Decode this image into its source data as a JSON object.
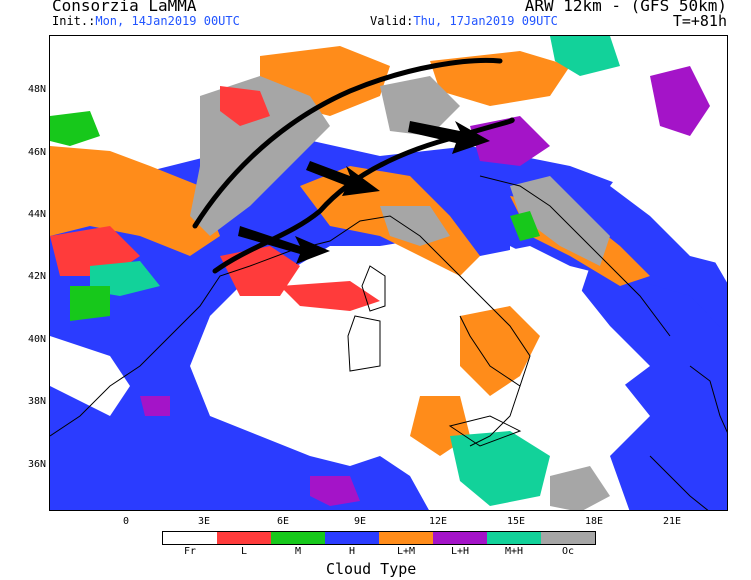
{
  "header": {
    "org": "Consorzia LaMMA",
    "model": "ARW 12km - (GFS 50km)",
    "init_label": "Init.:",
    "init_value": "Mon, 14Jan2019 00UTC",
    "valid_label": "Valid:",
    "valid_value": "Thu, 17Jan2019 09UTC",
    "timestep": "T=+81h"
  },
  "axes": {
    "lat_labels": [
      "48N",
      "46N",
      "44N",
      "42N",
      "40N",
      "38N",
      "36N"
    ],
    "lon_labels": [
      "0",
      "3E",
      "6E",
      "9E",
      "12E",
      "15E",
      "18E",
      "21E"
    ]
  },
  "legend": {
    "title": "Cloud Type",
    "items": [
      {
        "label": "Fr",
        "color": "#ffffff"
      },
      {
        "label": "L",
        "color": "#ff3b3b"
      },
      {
        "label": "M",
        "color": "#17c81b"
      },
      {
        "label": "H",
        "color": "#2b3cff"
      },
      {
        "label": "L+M",
        "color": "#ff8c1a"
      },
      {
        "label": "L+H",
        "color": "#a414c8"
      },
      {
        "label": "M+H",
        "color": "#12d29a"
      },
      {
        "label": "Oc",
        "color": "#a6a6a6"
      }
    ]
  }
}
